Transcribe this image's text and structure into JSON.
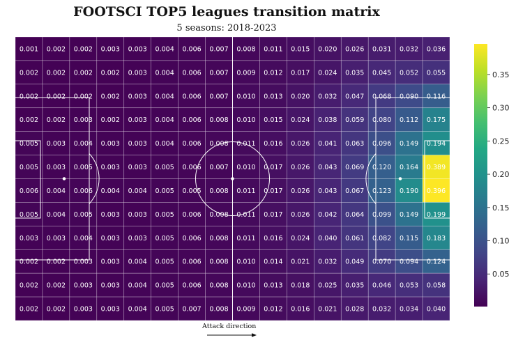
{
  "title": "FOOTSCI TOP5 leagues transition matrix",
  "subtitle": "5 seasons: 2018-2023",
  "attack_label": "Attack direction",
  "chart_data": {
    "type": "heatmap",
    "rows": 12,
    "cols": 16,
    "colormap": "viridis",
    "vmin": 0.001,
    "vmax": 0.396,
    "colorbar_ticks": [
      "0.05",
      "0.10",
      "0.15",
      "0.20",
      "0.25",
      "0.30",
      "0.35"
    ],
    "values": [
      [
        0.001,
        0.002,
        0.002,
        0.003,
        0.003,
        0.004,
        0.006,
        0.007,
        0.008,
        0.011,
        0.015,
        0.02,
        0.026,
        0.031,
        0.032,
        0.036
      ],
      [
        0.002,
        0.002,
        0.002,
        0.002,
        0.003,
        0.004,
        0.006,
        0.007,
        0.009,
        0.012,
        0.017,
        0.024,
        0.035,
        0.045,
        0.052,
        0.055
      ],
      [
        0.002,
        0.002,
        0.002,
        0.002,
        0.003,
        0.004,
        0.006,
        0.007,
        0.01,
        0.013,
        0.02,
        0.032,
        0.047,
        0.068,
        0.09,
        0.116
      ],
      [
        0.002,
        0.002,
        0.003,
        0.002,
        0.003,
        0.004,
        0.006,
        0.008,
        0.01,
        0.015,
        0.024,
        0.038,
        0.059,
        0.08,
        0.112,
        0.175
      ],
      [
        0.005,
        0.003,
        0.004,
        0.003,
        0.003,
        0.004,
        0.006,
        0.008,
        0.011,
        0.016,
        0.026,
        0.041,
        0.063,
        0.096,
        0.149,
        0.194
      ],
      [
        0.005,
        0.003,
        0.005,
        0.003,
        0.003,
        0.005,
        0.006,
        0.007,
        0.01,
        0.017,
        0.026,
        0.043,
        0.069,
        0.12,
        0.164,
        0.389
      ],
      [
        0.006,
        0.004,
        0.006,
        0.004,
        0.004,
        0.005,
        0.005,
        0.008,
        0.011,
        0.017,
        0.026,
        0.043,
        0.067,
        0.123,
        0.19,
        0.396
      ],
      [
        0.005,
        0.004,
        0.005,
        0.003,
        0.003,
        0.005,
        0.006,
        0.008,
        0.011,
        0.017,
        0.026,
        0.042,
        0.064,
        0.099,
        0.149,
        0.199
      ],
      [
        0.003,
        0.003,
        0.004,
        0.003,
        0.003,
        0.005,
        0.006,
        0.008,
        0.011,
        0.016,
        0.024,
        0.04,
        0.061,
        0.082,
        0.115,
        0.183
      ],
      [
        0.002,
        0.002,
        0.003,
        0.003,
        0.004,
        0.005,
        0.006,
        0.008,
        0.01,
        0.014,
        0.021,
        0.032,
        0.049,
        0.07,
        0.094,
        0.124
      ],
      [
        0.002,
        0.002,
        0.003,
        0.003,
        0.004,
        0.005,
        0.006,
        0.008,
        0.01,
        0.013,
        0.018,
        0.025,
        0.035,
        0.046,
        0.053,
        0.058
      ],
      [
        0.002,
        0.002,
        0.003,
        0.003,
        0.004,
        0.005,
        0.007,
        0.008,
        0.009,
        0.012,
        0.016,
        0.021,
        0.028,
        0.032,
        0.034,
        0.04
      ]
    ]
  }
}
